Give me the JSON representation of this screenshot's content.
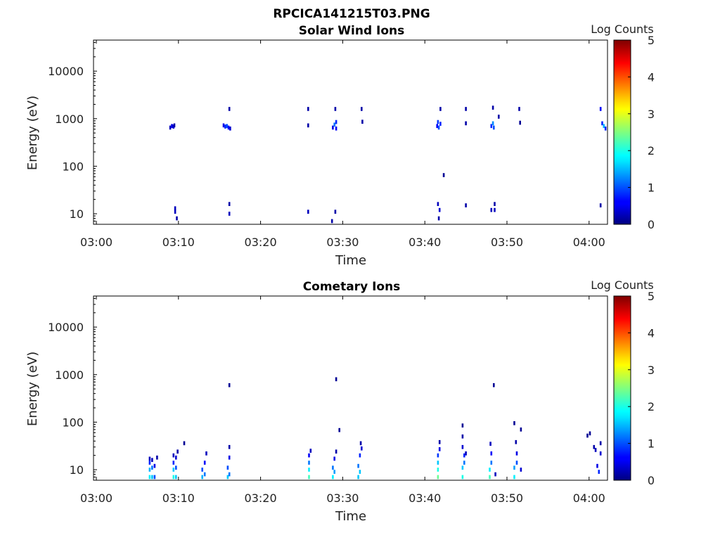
{
  "figure_title": "RPCICA141215T03.PNG",
  "colorbar": {
    "label": "Log Counts",
    "ticks": [
      "0",
      "1",
      "2",
      "3",
      "4",
      "5"
    ],
    "range": [
      0,
      5
    ],
    "colormap": "jet"
  },
  "chart_data": [
    {
      "type": "heatmap",
      "title": "Solar Wind Ions",
      "xlabel": "Time",
      "ylabel": "Energy (eV)",
      "x_ticks": [
        "03:00",
        "03:10",
        "03:20",
        "03:30",
        "03:40",
        "03:50",
        "04:00"
      ],
      "y_ticks": [
        "10",
        "100",
        "1000",
        "10000"
      ],
      "y_scale": "log",
      "xlim": [
        0,
        63
      ],
      "ylim": [
        6,
        45000
      ],
      "grid": false,
      "cells": [
        [
          9.0,
          650,
          0.3
        ],
        [
          9.2,
          700,
          0.5
        ],
        [
          9.4,
          680,
          0.4
        ],
        [
          9.5,
          720,
          0.2
        ],
        [
          9.6,
          11,
          0.3
        ],
        [
          9.6,
          13,
          0.3
        ],
        [
          9.8,
          8,
          0.2
        ],
        [
          15.5,
          720,
          0.5
        ],
        [
          15.7,
          680,
          0.8
        ],
        [
          15.9,
          700,
          1.0
        ],
        [
          16.1,
          650,
          0.6
        ],
        [
          16.3,
          620,
          0.4
        ],
        [
          16.2,
          1600,
          0.2
        ],
        [
          16.2,
          10,
          0.3
        ],
        [
          16.2,
          16,
          0.2
        ],
        [
          25.8,
          1600,
          0.2
        ],
        [
          25.8,
          720,
          0.2
        ],
        [
          25.8,
          11,
          0.3
        ],
        [
          28.8,
          650,
          0.5
        ],
        [
          29.0,
          750,
          1.2
        ],
        [
          29.2,
          850,
          0.8
        ],
        [
          29.2,
          620,
          0.6
        ],
        [
          29.1,
          1600,
          0.2
        ],
        [
          28.7,
          7,
          0.2
        ],
        [
          29.1,
          11,
          0.2
        ],
        [
          32.3,
          1600,
          0.2
        ],
        [
          32.4,
          860,
          0.2
        ],
        [
          41.5,
          700,
          0.6
        ],
        [
          41.6,
          850,
          0.9
        ],
        [
          41.7,
          650,
          1.0
        ],
        [
          41.9,
          780,
          0.8
        ],
        [
          41.9,
          1600,
          0.2
        ],
        [
          41.6,
          16,
          0.3
        ],
        [
          41.8,
          12,
          0.4
        ],
        [
          41.7,
          8,
          0.2
        ],
        [
          42.3,
          65,
          0.1
        ],
        [
          45.0,
          1600,
          0.2
        ],
        [
          45.0,
          800,
          0.2
        ],
        [
          45.0,
          15,
          0.2
        ],
        [
          48.1,
          700,
          0.8
        ],
        [
          48.3,
          800,
          1.3
        ],
        [
          48.4,
          650,
          1.0
        ],
        [
          48.3,
          1700,
          0.2
        ],
        [
          48.1,
          12,
          0.3
        ],
        [
          48.5,
          12,
          0.3
        ],
        [
          48.5,
          16,
          0.2
        ],
        [
          49.0,
          1100,
          0.2
        ],
        [
          51.5,
          1600,
          0.2
        ],
        [
          51.6,
          820,
          0.1
        ],
        [
          61.4,
          1600,
          0.6
        ],
        [
          61.6,
          800,
          0.8
        ],
        [
          61.8,
          700,
          1.5
        ],
        [
          62.0,
          620,
          0.8
        ],
        [
          61.4,
          15,
          0.2
        ]
      ]
    },
    {
      "type": "heatmap",
      "title": "Cometary Ions",
      "xlabel": "Time",
      "ylabel": "Energy (eV)",
      "x_ticks": [
        "03:00",
        "03:10",
        "03:20",
        "03:30",
        "03:40",
        "03:50",
        "04:00"
      ],
      "y_ticks": [
        "10",
        "100",
        "1000",
        "10000"
      ],
      "y_scale": "log",
      "xlim": [
        0,
        63
      ],
      "ylim": [
        6,
        45000
      ],
      "grid": false,
      "cells": [
        [
          6.5,
          7,
          1.8
        ],
        [
          6.5,
          10,
          1.5
        ],
        [
          6.5,
          14,
          0.8
        ],
        [
          6.5,
          17,
          0.3
        ],
        [
          6.8,
          7,
          1.6
        ],
        [
          6.8,
          11,
          1.2
        ],
        [
          6.8,
          16,
          0.3
        ],
        [
          7.1,
          7,
          1.0
        ],
        [
          7.1,
          12,
          0.5
        ],
        [
          7.4,
          18,
          0.2
        ],
        [
          9.4,
          7,
          2.0
        ],
        [
          9.4,
          10,
          1.6
        ],
        [
          9.4,
          14,
          0.8
        ],
        [
          9.4,
          20,
          0.3
        ],
        [
          9.7,
          7,
          1.6
        ],
        [
          9.7,
          11,
          1.0
        ],
        [
          9.7,
          18,
          0.4
        ],
        [
          9.9,
          24,
          0.2
        ],
        [
          10.7,
          36,
          0.1
        ],
        [
          12.9,
          7,
          1.5
        ],
        [
          12.9,
          10,
          1.0
        ],
        [
          13.2,
          8,
          1.2
        ],
        [
          13.2,
          14,
          0.6
        ],
        [
          13.4,
          22,
          0.3
        ],
        [
          16.0,
          7,
          1.6
        ],
        [
          16.0,
          11,
          1.0
        ],
        [
          16.2,
          8,
          1.2
        ],
        [
          16.2,
          18,
          0.5
        ],
        [
          16.2,
          30,
          0.2
        ],
        [
          16.2,
          600,
          0.1
        ],
        [
          25.9,
          7,
          2.2
        ],
        [
          25.9,
          10,
          1.8
        ],
        [
          25.9,
          14,
          1.2
        ],
        [
          25.9,
          20,
          0.6
        ],
        [
          26.1,
          25,
          0.3
        ],
        [
          28.8,
          7,
          1.8
        ],
        [
          28.8,
          11,
          1.2
        ],
        [
          29.0,
          9,
          1.4
        ],
        [
          29.0,
          17,
          0.5
        ],
        [
          29.2,
          24,
          0.2
        ],
        [
          29.2,
          800,
          0.1
        ],
        [
          29.6,
          68,
          0.1
        ],
        [
          31.9,
          7,
          1.6
        ],
        [
          31.9,
          12,
          1.2
        ],
        [
          32.1,
          9,
          1.6
        ],
        [
          32.1,
          20,
          0.8
        ],
        [
          32.3,
          28,
          0.4
        ],
        [
          32.2,
          36,
          0.2
        ],
        [
          41.6,
          7,
          2.4
        ],
        [
          41.6,
          10,
          2.0
        ],
        [
          41.6,
          14,
          1.6
        ],
        [
          41.6,
          20,
          0.9
        ],
        [
          41.8,
          27,
          0.5
        ],
        [
          41.8,
          38,
          0.2
        ],
        [
          44.6,
          7,
          2.0
        ],
        [
          44.6,
          11,
          1.6
        ],
        [
          44.8,
          14,
          1.2
        ],
        [
          44.8,
          20,
          0.8
        ],
        [
          44.6,
          30,
          0.4
        ],
        [
          44.6,
          50,
          0.2
        ],
        [
          44.6,
          85,
          0.1
        ],
        [
          45.0,
          22,
          0.3
        ],
        [
          47.9,
          7,
          2.2
        ],
        [
          47.9,
          10,
          1.8
        ],
        [
          48.1,
          14,
          1.2
        ],
        [
          48.1,
          22,
          0.6
        ],
        [
          48.0,
          35,
          0.3
        ],
        [
          48.4,
          600,
          0.1
        ],
        [
          48.6,
          8,
          0.3
        ],
        [
          50.9,
          7,
          1.8
        ],
        [
          50.9,
          11,
          1.4
        ],
        [
          51.2,
          14,
          1.0
        ],
        [
          51.2,
          22,
          0.5
        ],
        [
          51.1,
          38,
          0.2
        ],
        [
          50.9,
          95,
          0.1
        ],
        [
          51.7,
          70,
          0.1
        ],
        [
          51.7,
          10,
          0.4
        ],
        [
          59.8,
          52,
          0.1
        ],
        [
          60.1,
          58,
          0.1
        ],
        [
          60.6,
          30,
          0.2
        ],
        [
          60.8,
          26,
          0.3
        ],
        [
          61.0,
          12,
          0.5
        ],
        [
          61.2,
          9,
          0.8
        ],
        [
          61.4,
          22,
          0.4
        ],
        [
          61.4,
          36,
          0.2
        ]
      ]
    }
  ]
}
